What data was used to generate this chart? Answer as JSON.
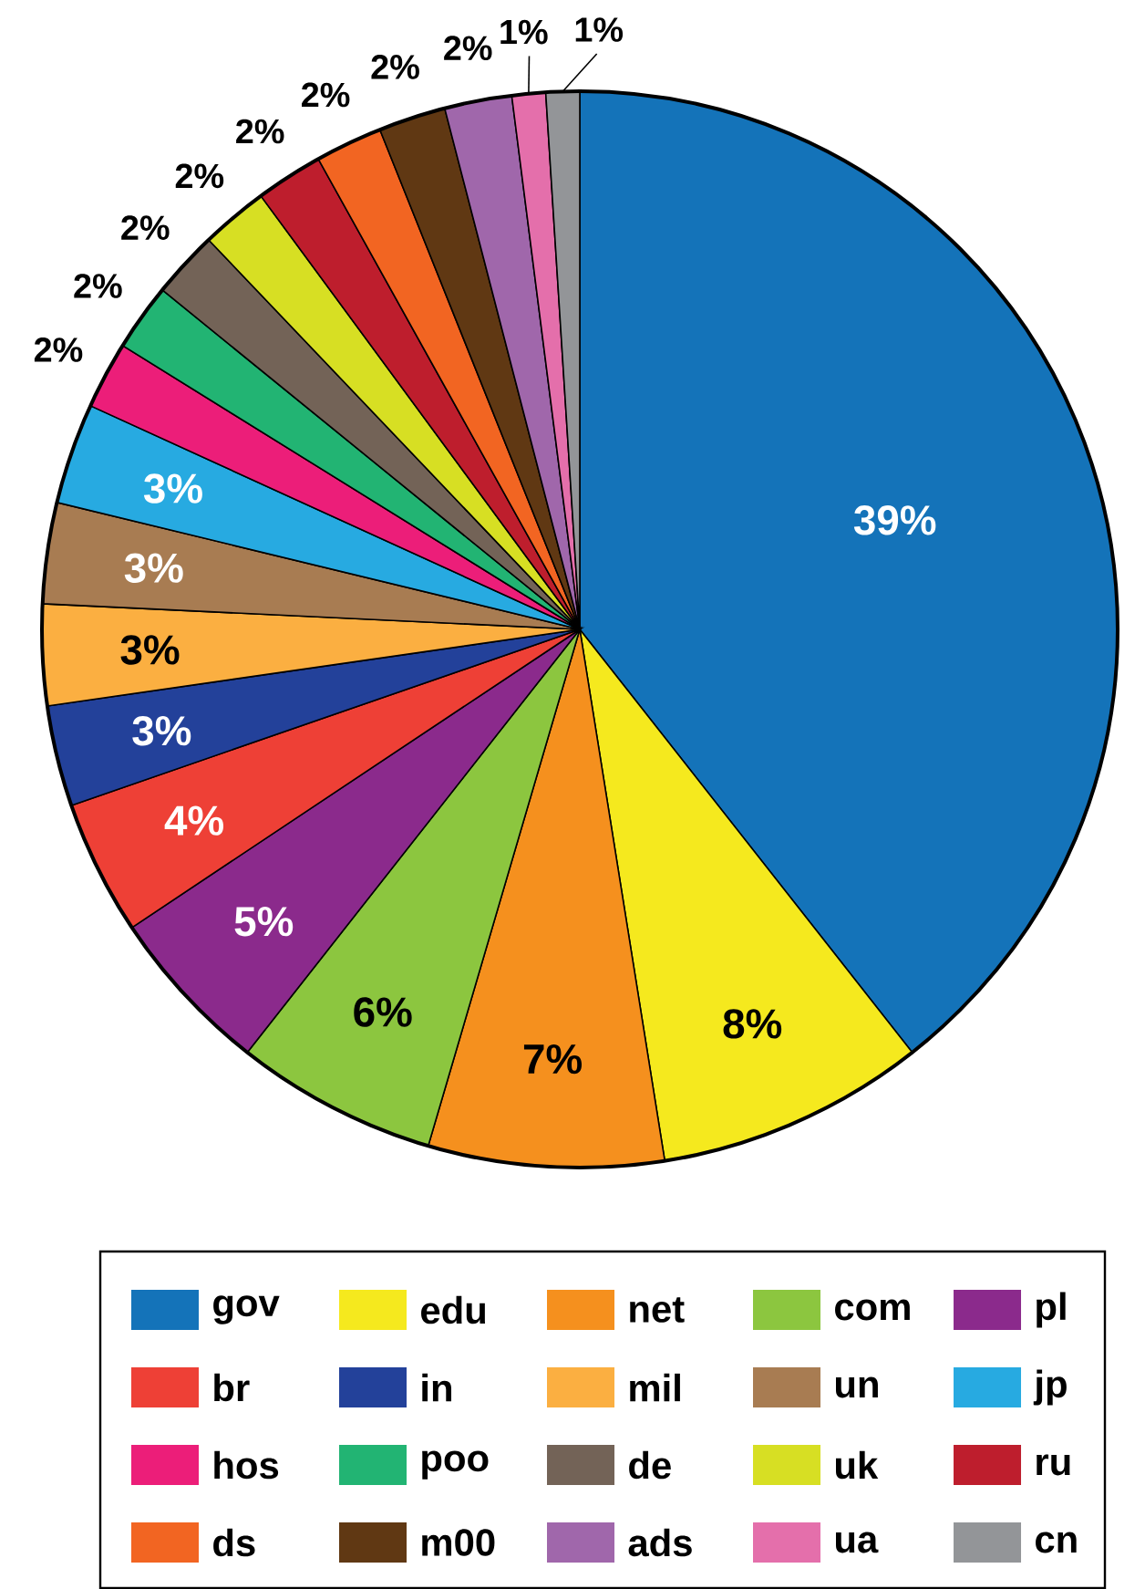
{
  "chart_data": {
    "type": "pie",
    "legend": "bottom",
    "categories": [
      "gov",
      "edu",
      "net",
      "com",
      "pl",
      "br",
      "in",
      "mil",
      "un",
      "jp",
      "hos",
      "poo",
      "de",
      "uk",
      "ru",
      "ds",
      "m00",
      "ads",
      "ua",
      "cn"
    ],
    "values": [
      39,
      8,
      7,
      6,
      5,
      4,
      3,
      3,
      3,
      3,
      2,
      2,
      2,
      2,
      2,
      2,
      2,
      2,
      1,
      1
    ],
    "colors": [
      "#1473b9",
      "#f5e91e",
      "#f5901e",
      "#8cc63f",
      "#8b2a8c",
      "#ee4036",
      "#23419a",
      "#fbaf41",
      "#a87c52",
      "#27aae1",
      "#ec1e79",
      "#22b473",
      "#736357",
      "#d7df23",
      "#be1e2d",
      "#f26522",
      "#603813",
      "#a067ab",
      "#e46fab",
      "#939598"
    ],
    "value_labels": [
      "39%",
      "8%",
      "7%",
      "6%",
      "5%",
      "4%",
      "3%",
      "3%",
      "3%",
      "3%",
      "2%",
      "2%",
      "2%",
      "2%",
      "2%",
      "2%",
      "2%",
      "2%",
      "1%",
      "1%"
    ]
  }
}
